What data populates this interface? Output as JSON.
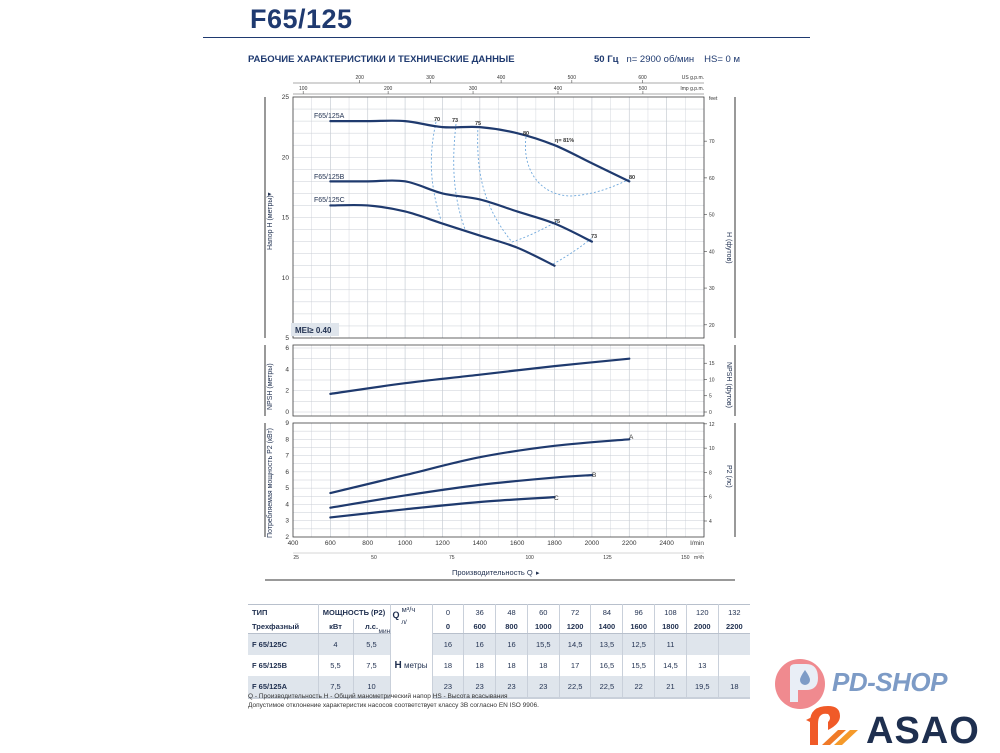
{
  "header": {
    "title": "F65/125",
    "subtitle": "РАБОЧИЕ ХАРАКТЕРИСТИКИ И ТЕХНИЧЕСКИЕ ДАННЫЕ",
    "frequency": "50 Гц",
    "speed": "n= 2900 об/мин",
    "suction": "HS= 0 м"
  },
  "colors": {
    "curve": "#1f3a6e",
    "dashed": "#6fa8dc",
    "grid": "#c8cdd4",
    "shade": "#dfe5ec"
  },
  "chart_data": [
    {
      "type": "line",
      "name": "head",
      "ylabel": "Напор H (метры)",
      "y2label": "H (футов)",
      "xlim": [
        400,
        2600
      ],
      "ylim": [
        5,
        25
      ],
      "yticks": [
        5,
        10,
        15,
        20,
        25
      ],
      "y2unit": "feet",
      "y2ticks": [
        20,
        30,
        40,
        50,
        60,
        70
      ],
      "top_axes": [
        {
          "unit": "US g.p.m.",
          "ticks": [
            200,
            300,
            400,
            500,
            600
          ]
        },
        {
          "unit": "Imp g.p.m.",
          "ticks": [
            100,
            200,
            300,
            400,
            500
          ]
        }
      ],
      "grid": true,
      "badge": "MEI≥ 0.40",
      "series": [
        {
          "name": "F65/125A",
          "x": [
            600,
            800,
            1000,
            1200,
            1400,
            1600,
            1800,
            2000,
            2200
          ],
          "y": [
            23,
            23,
            23,
            22.5,
            22.5,
            22,
            21,
            19.5,
            18
          ]
        },
        {
          "name": "F65/125B",
          "x": [
            600,
            800,
            1000,
            1200,
            1400,
            1600,
            1800,
            2000
          ],
          "y": [
            18,
            18,
            18,
            17,
            16.5,
            15.5,
            14.5,
            13
          ]
        },
        {
          "name": "F65/125C",
          "x": [
            600,
            800,
            1000,
            1200,
            1400,
            1600,
            1800
          ],
          "y": [
            16,
            16,
            15.5,
            14.5,
            13.5,
            12.5,
            11
          ]
        }
      ],
      "efficiency_labels": [
        "70",
        "73",
        "75",
        "80",
        "η= 81%",
        "80",
        "75",
        "73"
      ]
    },
    {
      "type": "line",
      "name": "npsh",
      "ylabel": "NPSH (метры)",
      "y2label": "NPSH (футов)",
      "xlim": [
        400,
        2600
      ],
      "ylim": [
        0,
        6
      ],
      "yticks": [
        0,
        2,
        4,
        6
      ],
      "y2ticks": [
        0,
        5,
        10,
        15
      ],
      "series": [
        {
          "name": "NPSH",
          "x": [
            600,
            1000,
            1400,
            1800,
            2200
          ],
          "y": [
            1.7,
            2.7,
            3.5,
            4.3,
            5.0
          ]
        }
      ]
    },
    {
      "type": "line",
      "name": "power",
      "ylabel": "Потребляемая мощность P2 (кВт)",
      "y2label": "P2 (лс)",
      "xlabel": "Производительность Q",
      "xunit": "l/min",
      "xlim": [
        400,
        2600
      ],
      "ylim": [
        2,
        9
      ],
      "xticks": [
        400,
        600,
        800,
        1000,
        1200,
        1400,
        1600,
        1800,
        2000,
        2200,
        2400
      ],
      "yticks": [
        2,
        3,
        4,
        5,
        6,
        7,
        8,
        9
      ],
      "y2ticks": [
        4,
        6,
        8,
        10,
        12
      ],
      "x2unit": "m³/h",
      "x2ticks": [
        25,
        50,
        75,
        100,
        125,
        150
      ],
      "series": [
        {
          "name": "A",
          "x": [
            600,
            1000,
            1400,
            1800,
            2200
          ],
          "y": [
            4.7,
            5.8,
            6.9,
            7.6,
            8.0
          ]
        },
        {
          "name": "B",
          "x": [
            600,
            1000,
            1400,
            1800,
            2000
          ],
          "y": [
            3.8,
            4.55,
            5.2,
            5.65,
            5.8
          ]
        },
        {
          "name": "C",
          "x": [
            600,
            1000,
            1400,
            1800
          ],
          "y": [
            3.2,
            3.7,
            4.15,
            4.45
          ]
        }
      ]
    }
  ],
  "table": {
    "type_header": "ТИП",
    "phase_header": "Трехфазный",
    "power_header": "МОЩНОСТЬ (P2)",
    "kw": "кВт",
    "hp": "л.с.",
    "q_letter": "Q",
    "q_unit_m3h": "м³/ч",
    "q_unit_lmin": "л/мин",
    "h_letter": "H",
    "h_unit": "метры",
    "q_m3h": [
      "0",
      "36",
      "48",
      "60",
      "72",
      "84",
      "96",
      "108",
      "120",
      "132"
    ],
    "q_lmin": [
      "0",
      "600",
      "800",
      "1000",
      "1200",
      "1400",
      "1600",
      "1800",
      "2000",
      "2200"
    ],
    "rows": [
      {
        "model": "F 65/125C",
        "kw": "4",
        "hp": "5,5",
        "h": [
          "16",
          "16",
          "16",
          "15,5",
          "14,5",
          "13,5",
          "12,5",
          "11",
          "",
          ""
        ]
      },
      {
        "model": "F 65/125B",
        "kw": "5,5",
        "hp": "7,5",
        "h": [
          "18",
          "18",
          "18",
          "18",
          "17",
          "16,5",
          "15,5",
          "14,5",
          "13",
          ""
        ]
      },
      {
        "model": "F 65/125A",
        "kw": "7,5",
        "hp": "10",
        "h": [
          "23",
          "23",
          "23",
          "23",
          "22,5",
          "22,5",
          "22",
          "21",
          "19,5",
          "18"
        ]
      }
    ]
  },
  "footnotes": [
    "Q - Производительность   H - Общий манометрический напор   HS - Высота всасывания",
    "Допустимое отклонение характеристик насосов соответствует классу 3B согласно EN ISO 9906."
  ],
  "logos": {
    "pdshop": "PD-SHOP",
    "asao": "ASAO"
  }
}
